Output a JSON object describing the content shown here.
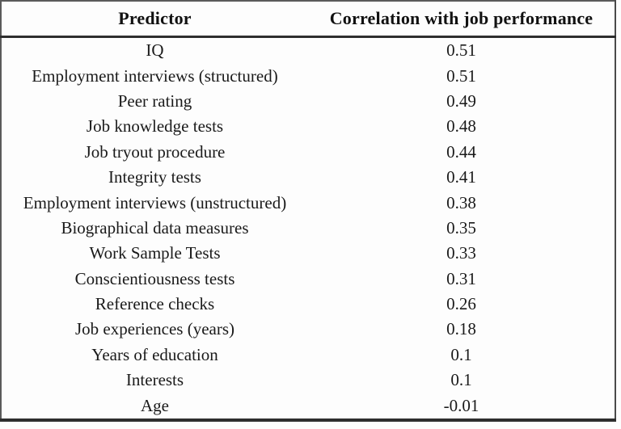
{
  "table": {
    "columns": [
      {
        "label": "Predictor"
      },
      {
        "label": "Correlation with job performance"
      }
    ],
    "rows": [
      {
        "predictor": "IQ",
        "correlation": "0.51"
      },
      {
        "predictor": "Employment interviews (structured)",
        "correlation": "0.51"
      },
      {
        "predictor": "Peer rating",
        "correlation": "0.49"
      },
      {
        "predictor": "Job knowledge tests",
        "correlation": "0.48"
      },
      {
        "predictor": "Job tryout procedure",
        "correlation": "0.44"
      },
      {
        "predictor": "Integrity tests",
        "correlation": "0.41"
      },
      {
        "predictor": "Employment interviews (unstructured)",
        "correlation": "0.38"
      },
      {
        "predictor": "Biographical data measures",
        "correlation": "0.35"
      },
      {
        "predictor": "Work Sample Tests",
        "correlation": "0.33"
      },
      {
        "predictor": "Conscientiousness tests",
        "correlation": "0.31"
      },
      {
        "predictor": "Reference checks",
        "correlation": "0.26"
      },
      {
        "predictor": "Job experiences (years)",
        "correlation": "0.18"
      },
      {
        "predictor": "Years of education",
        "correlation": "0.1"
      },
      {
        "predictor": "Interests",
        "correlation": "0.1"
      },
      {
        "predictor": "Age",
        "correlation": "-0.01"
      }
    ]
  },
  "colors": {
    "background": "#fdfdfd",
    "text": "#1a1a1a",
    "border_heavy": "#2e2e2e",
    "border_light": "#5a5a5a"
  }
}
